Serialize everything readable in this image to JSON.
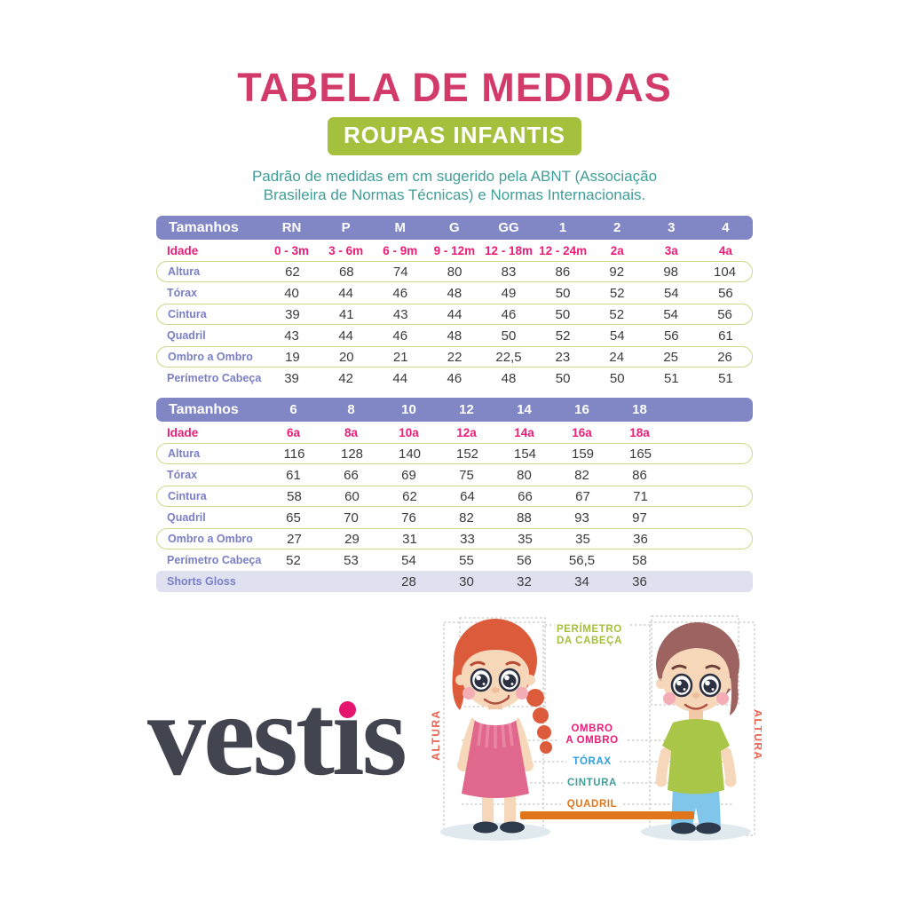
{
  "page": {
    "title": "TABELA DE MEDIDAS",
    "badge": "ROUPAS INFANTIS",
    "description": "Padrão de medidas em cm sugerido pela ABNT (Associação\nBrasileira de Normas Técnicas) e Normas Internacionais."
  },
  "colors": {
    "title_pink": "#d23a6a",
    "accent_pink": "#ed1c77",
    "badge_green": "#a4c03c",
    "teal": "#3f9e98",
    "header_purple": "#8186c5",
    "row_label_purple": "#7a7fc6",
    "row_outline_green": "#ccd98a",
    "filled_row_lavender": "#dfe1f1",
    "value_text": "#3b3b3b",
    "orange": "#e0751c",
    "torax_blue": "#2f9fe0",
    "altura_red": "#e8604c",
    "logo_dark": "#42454f",
    "logo_dot_pink": "#e5146e"
  },
  "table1": {
    "header_label": "Tamanhos",
    "sizes": [
      "RN",
      "P",
      "M",
      "G",
      "GG",
      "1",
      "2",
      "3",
      "4"
    ],
    "rows": [
      {
        "label": "Idade",
        "style": "age",
        "values": [
          "0 - 3m",
          "3 - 6m",
          "6 - 9m",
          "9 - 12m",
          "12 - 18m",
          "12 - 24m",
          "2a",
          "3a",
          "4a"
        ]
      },
      {
        "label": "Altura",
        "style": "outlined",
        "values": [
          "62",
          "68",
          "74",
          "80",
          "83",
          "86",
          "92",
          "98",
          "104"
        ]
      },
      {
        "label": "Tórax",
        "style": "plain",
        "values": [
          "40",
          "44",
          "46",
          "48",
          "49",
          "50",
          "52",
          "54",
          "56"
        ]
      },
      {
        "label": "Cintura",
        "style": "outlined",
        "values": [
          "39",
          "41",
          "43",
          "44",
          "46",
          "50",
          "52",
          "54",
          "56"
        ]
      },
      {
        "label": "Quadril",
        "style": "plain",
        "values": [
          "43",
          "44",
          "46",
          "48",
          "50",
          "52",
          "54",
          "56",
          "61"
        ]
      },
      {
        "label": "Ombro a Ombro",
        "style": "outlined",
        "values": [
          "19",
          "20",
          "21",
          "22",
          "22,5",
          "23",
          "24",
          "25",
          "26"
        ]
      },
      {
        "label": "Perímetro Cabeça",
        "style": "plain",
        "values": [
          "39",
          "42",
          "44",
          "46",
          "48",
          "50",
          "50",
          "51",
          "51"
        ]
      }
    ]
  },
  "table2": {
    "header_label": "Tamanhos",
    "sizes": [
      "6",
      "8",
      "10",
      "12",
      "14",
      "16",
      "18"
    ],
    "rows": [
      {
        "label": "Idade",
        "style": "age",
        "values": [
          "6a",
          "8a",
          "10a",
          "12a",
          "14a",
          "16a",
          "18a"
        ]
      },
      {
        "label": "Altura",
        "style": "outlined",
        "values": [
          "116",
          "128",
          "140",
          "152",
          "154",
          "159",
          "165"
        ]
      },
      {
        "label": "Tórax",
        "style": "plain",
        "values": [
          "61",
          "66",
          "69",
          "75",
          "80",
          "82",
          "86"
        ]
      },
      {
        "label": "Cintura",
        "style": "outlined",
        "values": [
          "58",
          "60",
          "62",
          "64",
          "66",
          "67",
          "71"
        ]
      },
      {
        "label": "Quadril",
        "style": "plain",
        "values": [
          "65",
          "70",
          "76",
          "82",
          "88",
          "93",
          "97"
        ]
      },
      {
        "label": "Ombro a Ombro",
        "style": "outlined",
        "values": [
          "27",
          "29",
          "31",
          "33",
          "35",
          "35",
          "36"
        ]
      },
      {
        "label": "Perímetro Cabeça",
        "style": "plain",
        "values": [
          "52",
          "53",
          "54",
          "55",
          "56",
          "56,5",
          "58"
        ]
      },
      {
        "label": "Shorts Gloss",
        "style": "filled",
        "values": [
          "",
          "",
          "28",
          "30",
          "32",
          "34",
          "36"
        ]
      }
    ]
  },
  "brand": {
    "name": "vestis"
  },
  "figure": {
    "labels": {
      "perimetro_line1": "PERÍMETRO",
      "perimetro_line2": "DA CABEÇA",
      "ombro_line1": "OMBRO",
      "ombro_line2": "A OMBRO",
      "torax": "TÓRAX",
      "cintura": "CINTURA",
      "quadril": "QUADRIL",
      "altura_left": "ALTURA",
      "altura_right": "ALTURA"
    }
  }
}
